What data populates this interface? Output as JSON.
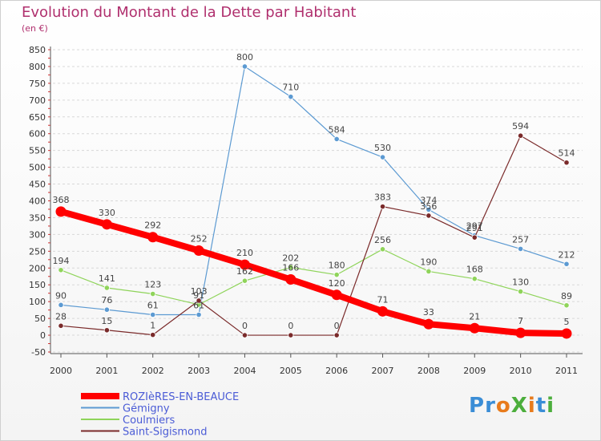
{
  "title": "Evolution du Montant de la Dette par Habitant",
  "subtitle": "(en €)",
  "logo": {
    "text": "ProXiti",
    "letter_colors": [
      "#3a8dd6",
      "#3a8dd6",
      "#e87b1c",
      "#4cae3c",
      "#e87b1c",
      "#3a8dd6",
      "#4cae3c"
    ]
  },
  "colors": {
    "title": "#b0306e",
    "legend_text": "#4a5bd6",
    "axis": "#333333",
    "grid": "#d8d8d8"
  },
  "chart_data": {
    "type": "line",
    "x": [
      "2000",
      "2001",
      "2002",
      "2003",
      "2004",
      "2005",
      "2006",
      "2007",
      "2008",
      "2009",
      "2010",
      "2011"
    ],
    "ylim": [
      -50,
      850
    ],
    "yticks": [
      -50,
      0,
      50,
      100,
      150,
      200,
      250,
      300,
      350,
      400,
      450,
      500,
      550,
      600,
      650,
      700,
      750,
      800,
      850
    ],
    "grid": "horizontal dashed",
    "legend": "bottom-left",
    "series": [
      {
        "name": "ROZIèRES-EN-BEAUCE",
        "color": "#ff0000",
        "values": [
          368,
          330,
          292,
          252,
          210,
          166,
          120,
          71,
          33,
          21,
          7,
          5
        ],
        "thick": true
      },
      {
        "name": "Gémigny",
        "color": "#5c9ad2",
        "values": [
          90,
          76,
          61,
          61,
          800,
          710,
          584,
          530,
          374,
          297,
          257,
          212
        ]
      },
      {
        "name": "Coulmiers",
        "color": "#8fd45a",
        "values": [
          194,
          141,
          123,
          91,
          162,
          202,
          180,
          256,
          190,
          168,
          130,
          89
        ]
      },
      {
        "name": "Saint-Sigismond",
        "color": "#7a2a2a",
        "values": [
          28,
          15,
          1,
          103,
          0,
          0,
          0,
          383,
          356,
          291,
          594,
          514
        ]
      }
    ]
  }
}
